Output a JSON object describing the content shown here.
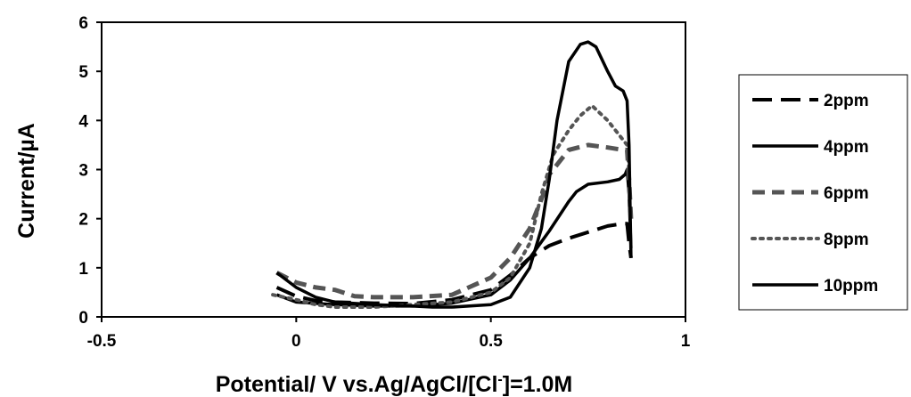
{
  "chart_data": {
    "type": "line",
    "title": "",
    "xlabel": "Potential/ V vs.Ag/AgCl/[Cl",
    "xlabel_sup": "-",
    "xlabel_tail": "]=1.0M",
    "ylabel": "Current/µA",
    "xlim": [
      -0.5,
      1
    ],
    "ylim": [
      0,
      6
    ],
    "x_ticks": [
      "-0.5",
      "0",
      "0.5",
      "1"
    ],
    "y_ticks": [
      "0",
      "1",
      "2",
      "3",
      "4",
      "5",
      "6"
    ],
    "grid": false,
    "legend_position": "right",
    "series": [
      {
        "name": "2ppm",
        "color": "#000000",
        "dash": "long-dash",
        "points": [
          [
            -0.05,
            0.6
          ],
          [
            0.0,
            0.42
          ],
          [
            0.05,
            0.33
          ],
          [
            0.1,
            0.3
          ],
          [
            0.2,
            0.28
          ],
          [
            0.3,
            0.27
          ],
          [
            0.4,
            0.35
          ],
          [
            0.5,
            0.55
          ],
          [
            0.55,
            0.85
          ],
          [
            0.6,
            1.2
          ],
          [
            0.65,
            1.45
          ],
          [
            0.7,
            1.6
          ],
          [
            0.8,
            1.85
          ],
          [
            0.84,
            1.9
          ],
          [
            0.85,
            1.9
          ],
          [
            0.855,
            1.5
          ],
          [
            0.86,
            1.2
          ]
        ]
      },
      {
        "name": "4ppm",
        "color": "#000000",
        "dash": "solid",
        "points": [
          [
            -0.05,
            0.45
          ],
          [
            0.0,
            0.3
          ],
          [
            0.1,
            0.25
          ],
          [
            0.2,
            0.22
          ],
          [
            0.3,
            0.22
          ],
          [
            0.4,
            0.28
          ],
          [
            0.5,
            0.45
          ],
          [
            0.55,
            0.75
          ],
          [
            0.6,
            1.2
          ],
          [
            0.65,
            1.75
          ],
          [
            0.7,
            2.35
          ],
          [
            0.72,
            2.55
          ],
          [
            0.75,
            2.7
          ],
          [
            0.8,
            2.75
          ],
          [
            0.83,
            2.8
          ],
          [
            0.845,
            2.9
          ],
          [
            0.85,
            3.0
          ],
          [
            0.855,
            2.5
          ],
          [
            0.86,
            1.4
          ]
        ]
      },
      {
        "name": "6ppm",
        "color": "#555555",
        "dash": "dash",
        "points": [
          [
            -0.05,
            0.9
          ],
          [
            0.0,
            0.7
          ],
          [
            0.05,
            0.6
          ],
          [
            0.1,
            0.55
          ],
          [
            0.15,
            0.42
          ],
          [
            0.2,
            0.4
          ],
          [
            0.3,
            0.4
          ],
          [
            0.4,
            0.45
          ],
          [
            0.5,
            0.8
          ],
          [
            0.55,
            1.2
          ],
          [
            0.6,
            1.8
          ],
          [
            0.64,
            2.6
          ],
          [
            0.65,
            2.9
          ],
          [
            0.7,
            3.4
          ],
          [
            0.75,
            3.5
          ],
          [
            0.8,
            3.45
          ],
          [
            0.84,
            3.4
          ],
          [
            0.85,
            3.4
          ],
          [
            0.855,
            2.8
          ],
          [
            0.86,
            2.0
          ]
        ]
      },
      {
        "name": "8ppm",
        "color": "#555555",
        "dash": "dot",
        "points": [
          [
            -0.06,
            0.45
          ],
          [
            0.0,
            0.35
          ],
          [
            0.05,
            0.25
          ],
          [
            0.1,
            0.2
          ],
          [
            0.2,
            0.2
          ],
          [
            0.3,
            0.25
          ],
          [
            0.4,
            0.3
          ],
          [
            0.5,
            0.5
          ],
          [
            0.55,
            0.8
          ],
          [
            0.6,
            1.5
          ],
          [
            0.63,
            2.5
          ],
          [
            0.66,
            3.3
          ],
          [
            0.7,
            3.8
          ],
          [
            0.73,
            4.1
          ],
          [
            0.76,
            4.3
          ],
          [
            0.8,
            4.0
          ],
          [
            0.83,
            3.7
          ],
          [
            0.85,
            3.5
          ],
          [
            0.855,
            3.0
          ]
        ]
      },
      {
        "name": "10ppm",
        "color": "#000000",
        "dash": "solid",
        "points": [
          [
            -0.05,
            0.9
          ],
          [
            0.0,
            0.6
          ],
          [
            0.05,
            0.4
          ],
          [
            0.1,
            0.3
          ],
          [
            0.2,
            0.25
          ],
          [
            0.3,
            0.22
          ],
          [
            0.35,
            0.2
          ],
          [
            0.4,
            0.2
          ],
          [
            0.5,
            0.25
          ],
          [
            0.55,
            0.4
          ],
          [
            0.6,
            1.0
          ],
          [
            0.63,
            1.8
          ],
          [
            0.65,
            2.8
          ],
          [
            0.67,
            4.0
          ],
          [
            0.7,
            5.2
          ],
          [
            0.73,
            5.55
          ],
          [
            0.75,
            5.6
          ],
          [
            0.77,
            5.5
          ],
          [
            0.8,
            5.0
          ],
          [
            0.82,
            4.7
          ],
          [
            0.84,
            4.6
          ],
          [
            0.85,
            4.4
          ],
          [
            0.855,
            3.5
          ],
          [
            0.86,
            1.2
          ]
        ]
      }
    ]
  }
}
